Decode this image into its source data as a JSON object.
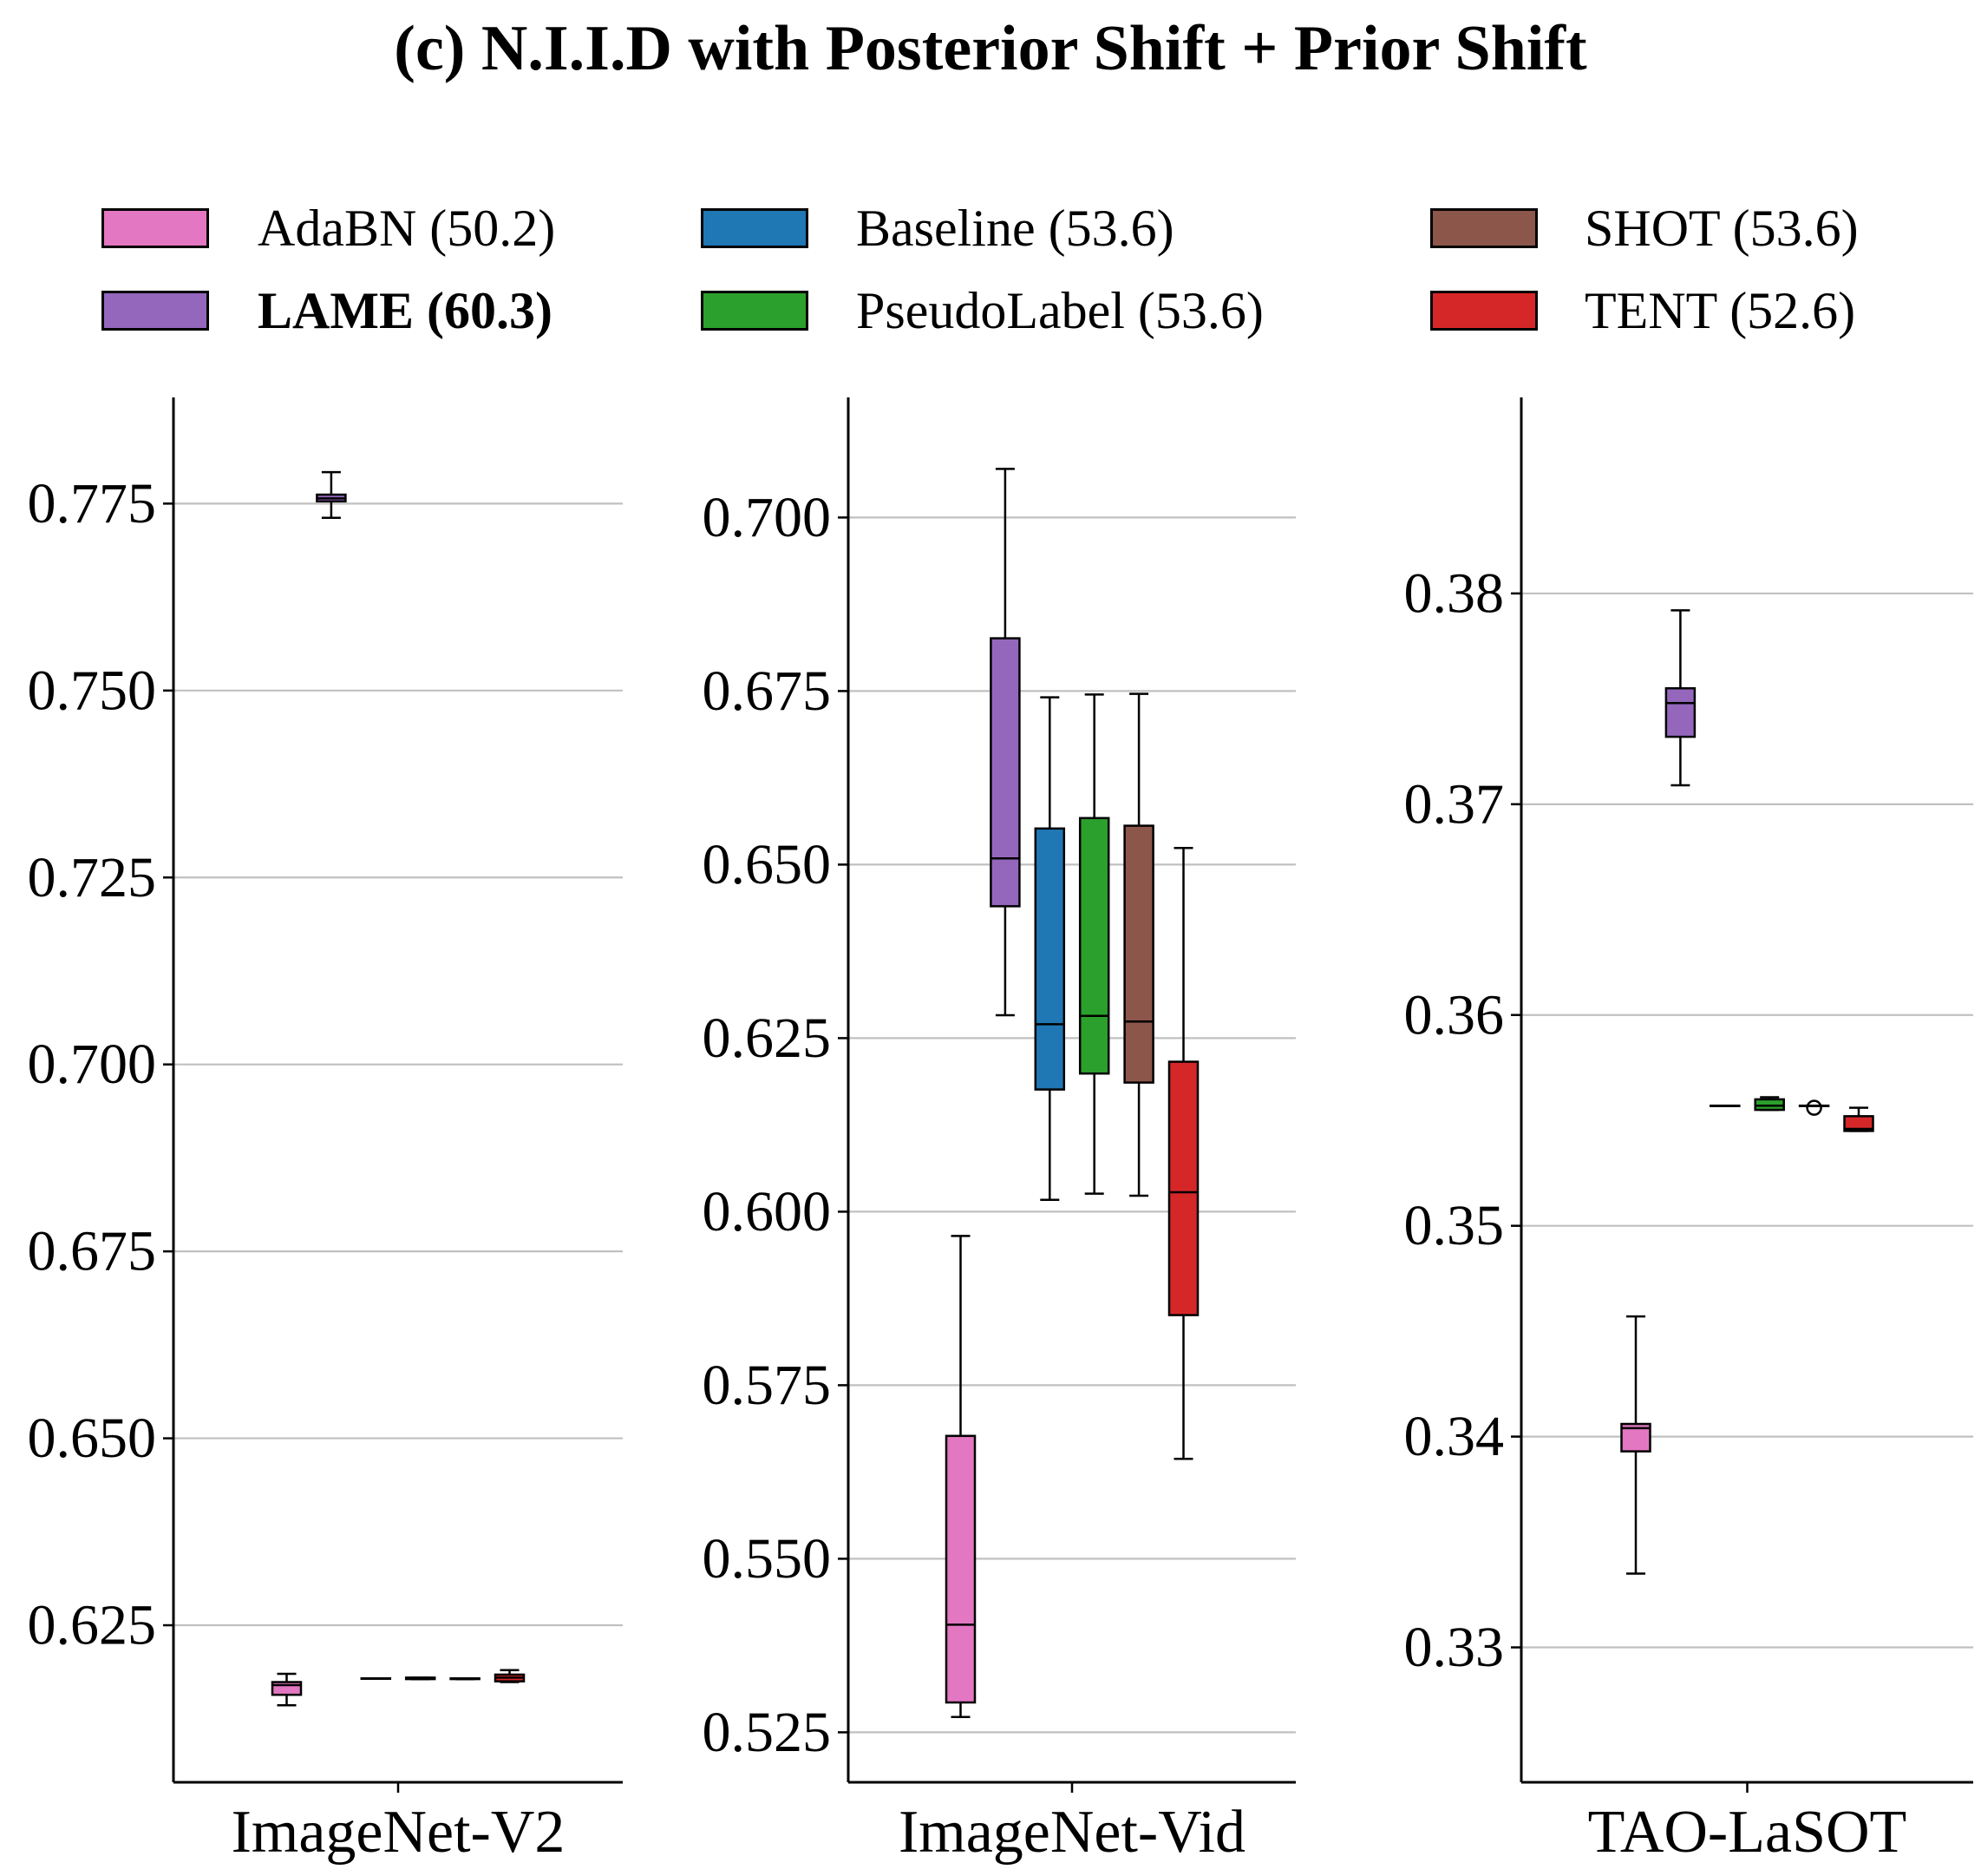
{
  "chart_data": {
    "type": "box",
    "title": "(c) N.I.I.D with Posterior Shift + Prior Shift",
    "legend": {
      "placement": "top",
      "columns": 3,
      "entries": [
        {
          "label": "AdaBN (50.2)",
          "color": "#e377c2",
          "bold": false
        },
        {
          "label": "LAME (60.3)",
          "color": "#9467bd",
          "bold": true
        },
        {
          "label": "Baseline (53.6)",
          "color": "#1f77b4",
          "bold": false
        },
        {
          "label": "PseudoLabel (53.6)",
          "color": "#2ca02c",
          "bold": false
        },
        {
          "label": "SHOT (53.6)",
          "color": "#8c564b",
          "bold": false
        },
        {
          "label": "TENT (52.6)",
          "color": "#d62728",
          "bold": false
        }
      ]
    },
    "series_order": [
      "AdaBN",
      "LAME",
      "Baseline",
      "PseudoLabel",
      "SHOT",
      "TENT"
    ],
    "series_colors": [
      "#e377c2",
      "#9467bd",
      "#1f77b4",
      "#2ca02c",
      "#8c564b",
      "#d62728"
    ],
    "grid": "y",
    "grid_color": "#c0c0c0",
    "panels": [
      {
        "xlabel": "ImageNet-V2",
        "ylim": [
          0.604,
          0.7892
        ],
        "yticks": [
          0.625,
          0.65,
          0.675,
          0.7,
          0.725,
          0.75,
          0.775
        ],
        "ytick_labels": [
          "0.625",
          "0.650",
          "0.675",
          "0.700",
          "0.725",
          "0.750",
          "0.775"
        ],
        "boxes": [
          {
            "name": "AdaBN",
            "whislo": 0.6143,
            "q1": 0.6157,
            "med": 0.617,
            "q3": 0.6174,
            "whishi": 0.6185,
            "fliers": []
          },
          {
            "name": "LAME",
            "whislo": 0.7731,
            "q1": 0.7753,
            "med": 0.7757,
            "q3": 0.7762,
            "whishi": 0.7792,
            "fliers": []
          },
          {
            "name": "Baseline",
            "whislo": 0.6179,
            "q1": 0.6179,
            "med": 0.6179,
            "q3": 0.6179,
            "whishi": 0.6179,
            "fliers": []
          },
          {
            "name": "PseudoLabel",
            "whislo": 0.6178,
            "q1": 0.6178,
            "med": 0.6179,
            "q3": 0.618,
            "whishi": 0.618,
            "fliers": []
          },
          {
            "name": "SHOT",
            "whislo": 0.6178,
            "q1": 0.6178,
            "med": 0.6179,
            "q3": 0.6179,
            "whishi": 0.6179,
            "fliers": []
          },
          {
            "name": "TENT",
            "whislo": 0.6174,
            "q1": 0.6175,
            "med": 0.618,
            "q3": 0.6184,
            "whishi": 0.619,
            "fliers": []
          }
        ]
      },
      {
        "xlabel": "ImageNet-Vid",
        "ylim": [
          0.5178,
          0.7173
        ],
        "yticks": [
          0.525,
          0.55,
          0.575,
          0.6,
          0.625,
          0.65,
          0.675,
          0.7
        ],
        "ytick_labels": [
          "0.525",
          "0.550",
          "0.575",
          "0.600",
          "0.625",
          "0.650",
          "0.675",
          "0.700"
        ],
        "boxes": [
          {
            "name": "AdaBN",
            "whislo": 0.5272,
            "q1": 0.5293,
            "med": 0.5405,
            "q3": 0.5677,
            "whishi": 0.5965,
            "fliers": []
          },
          {
            "name": "LAME",
            "whislo": 0.6283,
            "q1": 0.644,
            "med": 0.6509,
            "q3": 0.6826,
            "whishi": 0.707,
            "fliers": []
          },
          {
            "name": "Baseline",
            "whislo": 0.6017,
            "q1": 0.6176,
            "med": 0.627,
            "q3": 0.6552,
            "whishi": 0.6741,
            "fliers": []
          },
          {
            "name": "PseudoLabel",
            "whislo": 0.6026,
            "q1": 0.6199,
            "med": 0.6282,
            "q3": 0.6567,
            "whishi": 0.6745,
            "fliers": []
          },
          {
            "name": "SHOT",
            "whislo": 0.6023,
            "q1": 0.6186,
            "med": 0.6274,
            "q3": 0.6556,
            "whishi": 0.6746,
            "fliers": []
          },
          {
            "name": "TENT",
            "whislo": 0.5644,
            "q1": 0.5851,
            "med": 0.6028,
            "q3": 0.6216,
            "whishi": 0.6524,
            "fliers": []
          }
        ]
      },
      {
        "xlabel": "TAO-LaSOT",
        "ylim": [
          0.3236,
          0.3893
        ],
        "yticks": [
          0.33,
          0.34,
          0.35,
          0.36,
          0.37,
          0.38
        ],
        "ytick_labels": [
          "0.33",
          "0.34",
          "0.35",
          "0.36",
          "0.37",
          "0.38"
        ],
        "boxes": [
          {
            "name": "AdaBN",
            "whislo": 0.3335,
            "q1": 0.3393,
            "med": 0.3404,
            "q3": 0.3406,
            "whishi": 0.3457,
            "fliers": []
          },
          {
            "name": "LAME",
            "whislo": 0.3709,
            "q1": 0.3732,
            "med": 0.3748,
            "q3": 0.3755,
            "whishi": 0.3792,
            "fliers": []
          },
          {
            "name": "Baseline",
            "whislo": 0.3557,
            "q1": 0.3557,
            "med": 0.3557,
            "q3": 0.3557,
            "whishi": 0.3557,
            "fliers": []
          },
          {
            "name": "PseudoLabel",
            "whislo": 0.3555,
            "q1": 0.3555,
            "med": 0.3557,
            "q3": 0.356,
            "whishi": 0.3561,
            "fliers": []
          },
          {
            "name": "SHOT",
            "whislo": 0.3557,
            "q1": 0.3557,
            "med": 0.3557,
            "q3": 0.3557,
            "whishi": 0.3557,
            "fliers": [
              0.3556
            ]
          },
          {
            "name": "TENT",
            "whislo": 0.3545,
            "q1": 0.3545,
            "med": 0.3546,
            "q3": 0.3552,
            "whishi": 0.3556,
            "fliers": []
          }
        ]
      }
    ]
  }
}
